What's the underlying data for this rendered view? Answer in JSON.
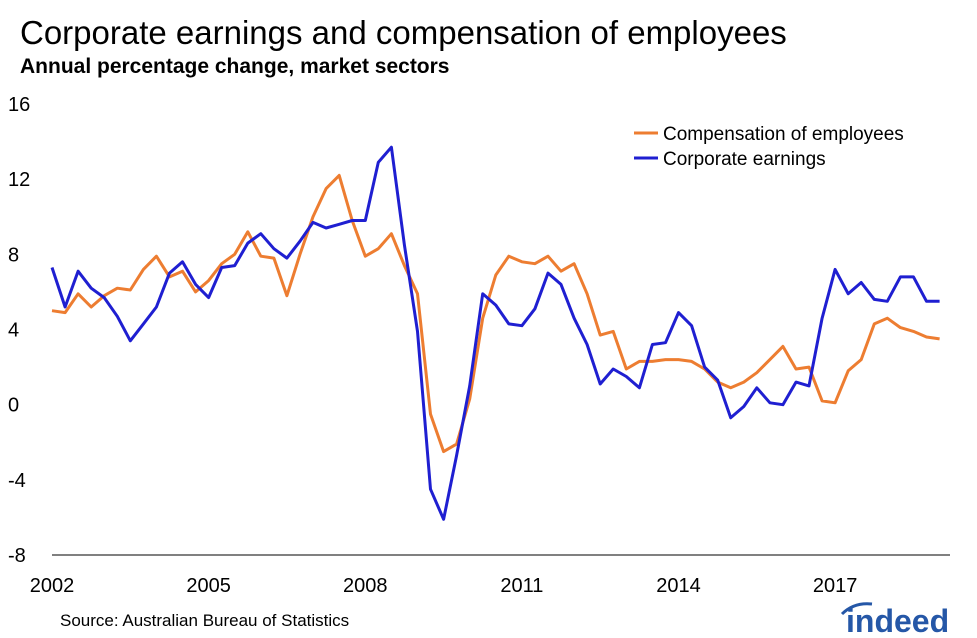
{
  "chart_data": {
    "type": "line",
    "title": "Corporate earnings and compensation of employees",
    "subtitle": "Annual percentage change, market sectors",
    "xlabel": "",
    "ylabel": "",
    "xlim": [
      2002,
      2019.2
    ],
    "ylim": [
      -8,
      16
    ],
    "y_ticks": [
      16,
      12,
      8,
      4,
      0,
      -4,
      -8
    ],
    "y_tick_labels": [
      "16",
      "12",
      "8",
      "4",
      "0",
      "-4",
      "-8"
    ],
    "x_ticks": [
      2002,
      2005,
      2008,
      2011,
      2014,
      2017
    ],
    "x_tick_labels": [
      "2002",
      "2005",
      "2008",
      "2011",
      "2014",
      "2017"
    ],
    "legend": {
      "placement": "top-right"
    },
    "source": "Source: Australian Bureau of Statistics",
    "logo": "indeed",
    "x": [
      2002.0,
      2002.25,
      2002.5,
      2002.75,
      2003.0,
      2003.25,
      2003.5,
      2003.75,
      2004.0,
      2004.25,
      2004.5,
      2004.75,
      2005.0,
      2005.25,
      2005.5,
      2005.75,
      2006.0,
      2006.25,
      2006.5,
      2006.75,
      2007.0,
      2007.25,
      2007.5,
      2007.75,
      2008.0,
      2008.25,
      2008.5,
      2008.75,
      2009.0,
      2009.25,
      2009.5,
      2009.75,
      2010.0,
      2010.25,
      2010.5,
      2010.75,
      2011.0,
      2011.25,
      2011.5,
      2011.75,
      2012.0,
      2012.25,
      2012.5,
      2012.75,
      2013.0,
      2013.25,
      2013.5,
      2013.75,
      2014.0,
      2014.25,
      2014.5,
      2014.75,
      2015.0,
      2015.25,
      2015.5,
      2015.75,
      2016.0,
      2016.25,
      2016.5,
      2016.75,
      2017.0,
      2017.25,
      2017.5,
      2017.75,
      2018.0,
      2018.25,
      2018.5,
      2018.75,
      2019.0
    ],
    "series": [
      {
        "name": "Compensation of employees",
        "color": "#ed7d31",
        "values": [
          5.0,
          4.9,
          5.9,
          5.2,
          5.8,
          6.2,
          6.1,
          7.2,
          7.9,
          6.8,
          7.1,
          6.0,
          6.6,
          7.5,
          8.0,
          9.2,
          7.9,
          7.8,
          5.8,
          8.0,
          10.0,
          11.5,
          12.2,
          9.8,
          7.9,
          8.3,
          9.1,
          7.4,
          5.9,
          -0.5,
          -2.5,
          -2.1,
          0.3,
          4.6,
          6.9,
          7.9,
          7.6,
          7.5,
          7.9,
          7.1,
          7.5,
          5.9,
          3.7,
          3.9,
          1.9,
          2.3,
          2.3,
          2.4,
          2.4,
          2.3,
          1.9,
          1.2,
          0.9,
          1.2,
          1.7,
          2.4,
          3.1,
          1.9,
          2.0,
          0.2,
          0.1,
          1.8,
          2.4,
          4.3,
          4.6,
          4.1,
          3.9,
          3.6,
          3.5
        ]
      },
      {
        "name": "Corporate earnings",
        "color": "#1f1fd1",
        "values": [
          7.3,
          5.2,
          7.1,
          6.2,
          5.7,
          4.7,
          3.4,
          4.3,
          5.2,
          7.0,
          7.6,
          6.4,
          5.7,
          7.3,
          7.4,
          8.6,
          9.1,
          8.3,
          7.8,
          8.7,
          9.7,
          9.4,
          9.6,
          9.8,
          9.8,
          12.9,
          13.7,
          8.5,
          3.9,
          -4.5,
          -6.1,
          -2.7,
          1.0,
          5.9,
          5.3,
          4.3,
          4.2,
          5.1,
          7.0,
          6.4,
          4.6,
          3.2,
          1.1,
          1.9,
          1.5,
          0.9,
          3.2,
          3.3,
          4.9,
          4.2,
          2.0,
          1.3,
          -0.7,
          -0.1,
          0.9,
          0.1,
          0.0,
          1.2,
          1.0,
          4.6,
          7.2,
          5.9,
          6.5,
          5.6,
          5.5,
          6.8,
          6.8,
          5.5,
          5.5
        ]
      }
    ]
  }
}
